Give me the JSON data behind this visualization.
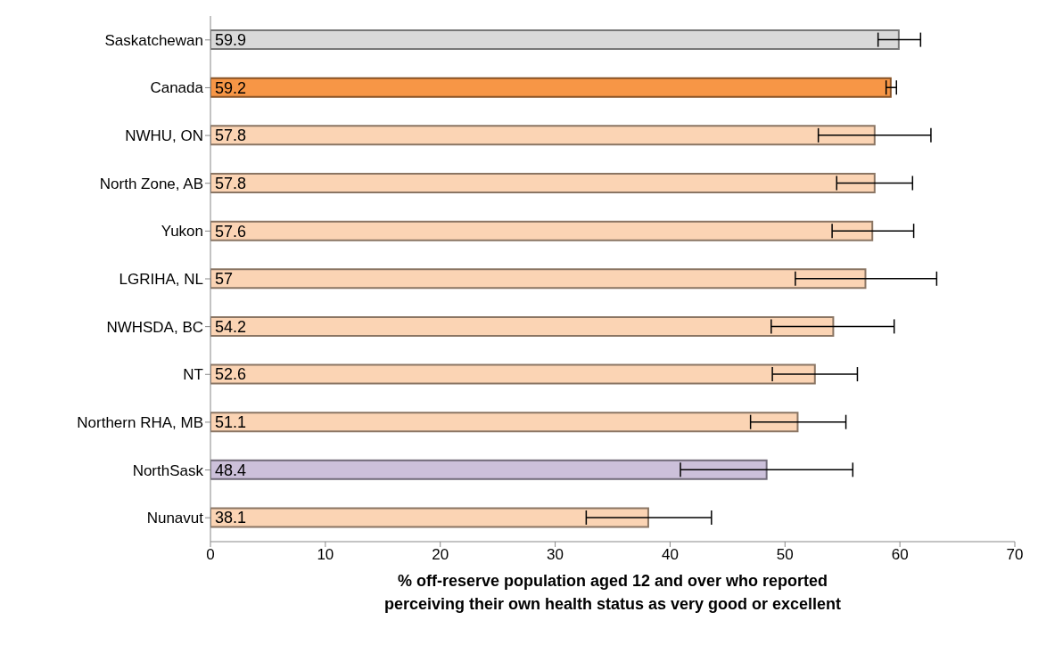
{
  "chart_data": {
    "type": "bar",
    "orientation": "horizontal",
    "xlabel": "% off-reserve population aged 12 and over who reported perceiving their own health status as very good or excellent",
    "categories": [
      "Saskatchewan",
      "Canada",
      "NWHU, ON",
      "North Zone, AB",
      "Yukon",
      "LGRIHA, NL",
      "NWHSDA, BC",
      "NT",
      "Northern RHA, MB",
      "NorthSask",
      "Nunavut"
    ],
    "values": [
      59.9,
      59.2,
      57.8,
      57.8,
      57.6,
      57,
      54.2,
      52.6,
      51.1,
      48.4,
      38.1
    ],
    "colors": [
      "#d9d9d9",
      "#f79646",
      "#fbd4b4",
      "#fbd4b4",
      "#fbd4b4",
      "#fbd4b4",
      "#fbd4b4",
      "#fbd4b4",
      "#fbd4b4",
      "#ccc0da",
      "#fbd4b4"
    ],
    "errors": [
      [
        58.1,
        61.8
      ],
      [
        58.8,
        59.7
      ],
      [
        52.9,
        62.7
      ],
      [
        54.5,
        61.1
      ],
      [
        54.1,
        61.2
      ],
      [
        50.9,
        63.2
      ],
      [
        48.8,
        59.5
      ],
      [
        48.9,
        56.3
      ],
      [
        47.0,
        55.3
      ],
      [
        40.9,
        55.9
      ],
      [
        32.7,
        43.6
      ]
    ],
    "xlim": [
      0,
      70
    ],
    "xticks": [
      0,
      10,
      20,
      30,
      40,
      50,
      60,
      70
    ],
    "data_labels": true,
    "grid": false
  }
}
